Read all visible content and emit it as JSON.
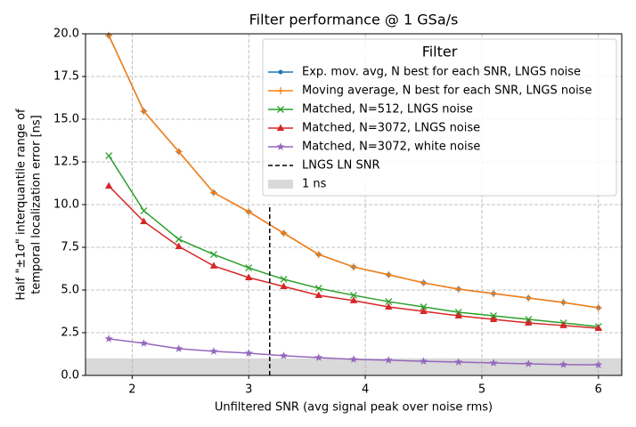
{
  "chart_data": {
    "type": "line",
    "title": "Filter performance @ 1 GSa/s",
    "xlabel": "Unfiltered SNR (avg signal peak over noise rms)",
    "ylabel": [
      "Half \"±1σ\" interquantile range of",
      "temporal localization error [ns]"
    ],
    "xlim": [
      1.6,
      6.2
    ],
    "ylim": [
      0,
      20
    ],
    "xticks": [
      2,
      3,
      4,
      5,
      6
    ],
    "yticks": [
      {
        "value": 0,
        "label": "0.0"
      },
      2.5,
      {
        "value": 5,
        "label": "5.0"
      },
      7.5,
      {
        "value": 10,
        "label": "10.0"
      },
      12.5,
      {
        "value": 15,
        "label": "15.0"
      },
      17.5,
      {
        "value": 20,
        "label": "20.0"
      }
    ],
    "grid": true,
    "legend_title": "Filter",
    "legend": "upper right",
    "x": [
      1.8,
      2.1,
      2.4,
      2.7,
      3.0,
      3.3,
      3.6,
      3.9,
      4.2,
      4.5,
      4.8,
      5.1,
      5.4,
      5.7,
      6.0
    ],
    "series": [
      {
        "name": "Exp. mov. avg, N best for each SNR, LNGS noise",
        "color": "#1f77b4",
        "marker": "o",
        "values": [
          19.9,
          15.47,
          13.1,
          10.7,
          9.58,
          8.33,
          7.08,
          6.35,
          5.89,
          5.42,
          5.05,
          4.79,
          4.53,
          4.27,
          3.96
        ]
      },
      {
        "name": "Moving average, N best for each SNR, LNGS noise",
        "color": "#ff7f0e",
        "marker": "+",
        "values": [
          19.9,
          15.47,
          13.1,
          10.7,
          9.58,
          8.33,
          7.08,
          6.35,
          5.89,
          5.42,
          5.05,
          4.79,
          4.53,
          4.27,
          3.96
        ]
      },
      {
        "name": "Matched, N=512, LNGS noise",
        "color": "#2ca02c",
        "marker": "x",
        "values": [
          12.86,
          9.64,
          7.97,
          7.08,
          6.3,
          5.63,
          5.1,
          4.69,
          4.32,
          4.01,
          3.7,
          3.49,
          3.28,
          3.07,
          2.86
        ]
      },
      {
        "name": "Matched, N=3072, LNGS noise",
        "color": "#d62728",
        "marker": "^",
        "values": [
          11.09,
          9.01,
          7.55,
          6.41,
          5.73,
          5.21,
          4.69,
          4.38,
          4.01,
          3.75,
          3.49,
          3.28,
          3.07,
          2.92,
          2.76
        ]
      },
      {
        "name": "Matched, N=3072, white noise",
        "color": "#9467bd",
        "marker": "*",
        "values": [
          2.14,
          1.88,
          1.56,
          1.41,
          1.3,
          1.15,
          1.04,
          0.94,
          0.89,
          0.83,
          0.78,
          0.73,
          0.68,
          0.63,
          0.62
        ]
      }
    ],
    "vline": {
      "name": "LNGS LN SNR",
      "x": 3.18,
      "ymax": 10,
      "color": "#000000"
    },
    "span": {
      "name": "1 ns",
      "y": [
        0,
        1
      ],
      "color": "#d9d9d9"
    }
  }
}
